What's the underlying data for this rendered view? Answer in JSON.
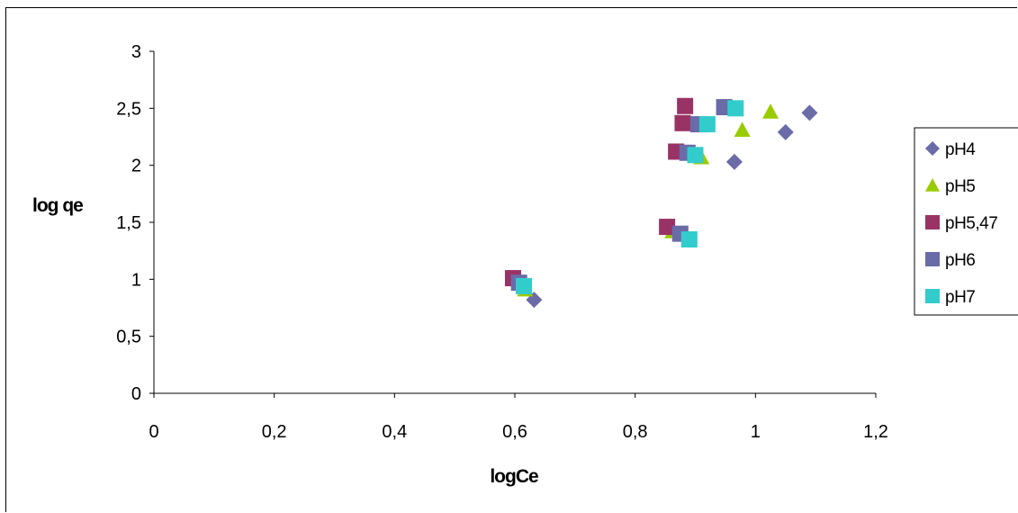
{
  "chart_data": {
    "type": "scatter",
    "xlabel": "logCe",
    "ylabel": "log qe",
    "xlim": [
      0,
      1.2
    ],
    "ylim": [
      0,
      3
    ],
    "xticks": [
      "0",
      "0,2",
      "0,4",
      "0,6",
      "0,8",
      "1",
      "1,2"
    ],
    "yticks": [
      "0",
      "0,5",
      "1",
      "1,5",
      "2",
      "2,5",
      "3"
    ],
    "grid": false,
    "legend_position": "right",
    "series": [
      {
        "name": "pH4",
        "marker": "diamond",
        "color": "#6B6BA8",
        "points": [
          [
            0.632,
            0.82
          ],
          [
            0.965,
            2.03
          ],
          [
            1.05,
            2.29
          ],
          [
            1.09,
            2.46
          ]
        ]
      },
      {
        "name": "pH5",
        "marker": "triangle",
        "color": "#99CC00",
        "points": [
          [
            0.617,
            0.91
          ],
          [
            0.862,
            1.42
          ],
          [
            0.91,
            2.07
          ],
          [
            0.978,
            2.31
          ],
          [
            1.025,
            2.47
          ]
        ]
      },
      {
        "name": "pH5,47",
        "marker": "square",
        "color": "#993366",
        "points": [
          [
            0.597,
            1.01
          ],
          [
            0.853,
            1.46
          ],
          [
            0.868,
            2.12
          ],
          [
            0.879,
            2.37
          ],
          [
            0.883,
            2.52
          ]
        ]
      },
      {
        "name": "pH6",
        "marker": "square",
        "color": "#6B6BA8",
        "points": [
          [
            0.607,
            0.97
          ],
          [
            0.875,
            1.4
          ],
          [
            0.887,
            2.11
          ],
          [
            0.905,
            2.36
          ],
          [
            0.948,
            2.51
          ]
        ]
      },
      {
        "name": "pH7",
        "marker": "square",
        "color": "#33CCCC",
        "points": [
          [
            0.615,
            0.94
          ],
          [
            0.89,
            1.35
          ],
          [
            0.9,
            2.09
          ],
          [
            0.92,
            2.36
          ],
          [
            0.967,
            2.5
          ]
        ]
      }
    ]
  }
}
